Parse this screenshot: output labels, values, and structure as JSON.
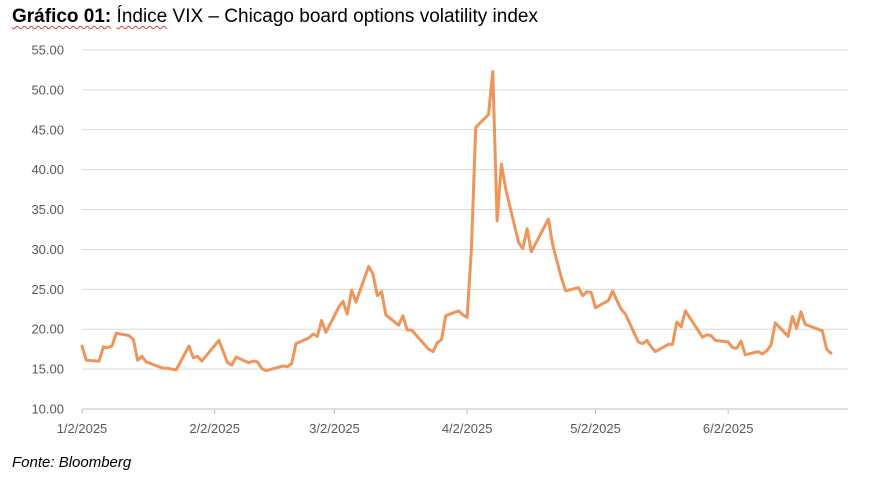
{
  "header": {
    "title_bold": "Gráfico 01:",
    "title_word": "Índice",
    "title_rest": "VIX – Chicago board options volatility index"
  },
  "source": "Fonte: Bloomberg",
  "colors": {
    "line": "#f0955a",
    "grid": "#d9d9d9",
    "axis": "#bfbfbf"
  },
  "chart_data": {
    "type": "line",
    "title": "Gráfico 01: Índice VIX – Chicago board options volatility index",
    "xlabel": "",
    "ylabel": "",
    "ylim": [
      10,
      55
    ],
    "xlim": [
      "2025-01-02",
      "2025-06-30"
    ],
    "grid": true,
    "legend": "none",
    "y_ticks": [
      "10.00",
      "15.00",
      "20.00",
      "25.00",
      "30.00",
      "35.00",
      "40.00",
      "45.00",
      "50.00",
      "55.00"
    ],
    "x_ticks": [
      {
        "label": "1/2/2025",
        "date": "2025-01-02"
      },
      {
        "label": "2/2/2025",
        "date": "2025-02-02"
      },
      {
        "label": "3/2/2025",
        "date": "2025-03-02"
      },
      {
        "label": "4/2/2025",
        "date": "2025-04-02"
      },
      {
        "label": "5/2/2025",
        "date": "2025-05-02"
      },
      {
        "label": "6/2/2025",
        "date": "2025-06-02"
      }
    ],
    "series": [
      {
        "name": "",
        "points": [
          [
            "2025-01-02",
            17.9
          ],
          [
            "2025-01-03",
            16.1
          ],
          [
            "2025-01-06",
            16.0
          ],
          [
            "2025-01-07",
            17.8
          ],
          [
            "2025-01-08",
            17.7
          ],
          [
            "2025-01-09",
            17.9
          ],
          [
            "2025-01-10",
            19.5
          ],
          [
            "2025-01-13",
            19.2
          ],
          [
            "2025-01-14",
            18.7
          ],
          [
            "2025-01-15",
            16.1
          ],
          [
            "2025-01-16",
            16.6
          ],
          [
            "2025-01-17",
            15.9
          ],
          [
            "2025-01-21",
            15.1
          ],
          [
            "2025-01-22",
            15.1
          ],
          [
            "2025-01-23",
            15.0
          ],
          [
            "2025-01-24",
            14.9
          ],
          [
            "2025-01-27",
            17.9
          ],
          [
            "2025-01-28",
            16.4
          ],
          [
            "2025-01-29",
            16.6
          ],
          [
            "2025-01-30",
            16.0
          ],
          [
            "2025-02-03",
            18.6
          ],
          [
            "2025-02-04",
            17.2
          ],
          [
            "2025-02-05",
            15.8
          ],
          [
            "2025-02-06",
            15.5
          ],
          [
            "2025-02-07",
            16.5
          ],
          [
            "2025-02-10",
            15.8
          ],
          [
            "2025-02-11",
            16.0
          ],
          [
            "2025-02-12",
            15.9
          ],
          [
            "2025-02-13",
            15.1
          ],
          [
            "2025-02-14",
            14.8
          ],
          [
            "2025-02-18",
            15.4
          ],
          [
            "2025-02-19",
            15.3
          ],
          [
            "2025-02-20",
            15.7
          ],
          [
            "2025-02-21",
            18.2
          ],
          [
            "2025-02-24",
            18.9
          ],
          [
            "2025-02-25",
            19.4
          ],
          [
            "2025-02-26",
            19.1
          ],
          [
            "2025-02-27",
            21.1
          ],
          [
            "2025-02-28",
            19.6
          ],
          [
            "2025-03-03",
            22.8
          ],
          [
            "2025-03-04",
            23.5
          ],
          [
            "2025-03-05",
            21.9
          ],
          [
            "2025-03-06",
            24.9
          ],
          [
            "2025-03-07",
            23.4
          ],
          [
            "2025-03-10",
            27.9
          ],
          [
            "2025-03-11",
            26.9
          ],
          [
            "2025-03-12",
            24.2
          ],
          [
            "2025-03-13",
            24.7
          ],
          [
            "2025-03-14",
            21.8
          ],
          [
            "2025-03-17",
            20.5
          ],
          [
            "2025-03-18",
            21.7
          ],
          [
            "2025-03-19",
            19.9
          ],
          [
            "2025-03-20",
            19.9
          ],
          [
            "2025-03-21",
            19.3
          ],
          [
            "2025-03-24",
            17.5
          ],
          [
            "2025-03-25",
            17.2
          ],
          [
            "2025-03-26",
            18.3
          ],
          [
            "2025-03-27",
            18.7
          ],
          [
            "2025-03-28",
            21.7
          ],
          [
            "2025-03-31",
            22.3
          ],
          [
            "2025-04-01",
            21.8
          ],
          [
            "2025-04-02",
            21.5
          ],
          [
            "2025-04-03",
            30.0
          ],
          [
            "2025-04-04",
            45.3
          ],
          [
            "2025-04-07",
            46.9
          ],
          [
            "2025-04-08",
            52.3
          ],
          [
            "2025-04-09",
            33.6
          ],
          [
            "2025-04-10",
            40.7
          ],
          [
            "2025-04-11",
            37.6
          ],
          [
            "2025-04-14",
            30.9
          ],
          [
            "2025-04-15",
            30.1
          ],
          [
            "2025-04-16",
            32.6
          ],
          [
            "2025-04-17",
            29.7
          ],
          [
            "2025-04-21",
            33.8
          ],
          [
            "2025-04-22",
            30.6
          ],
          [
            "2025-04-23",
            28.5
          ],
          [
            "2025-04-24",
            26.5
          ],
          [
            "2025-04-25",
            24.8
          ],
          [
            "2025-04-28",
            25.2
          ],
          [
            "2025-04-29",
            24.2
          ],
          [
            "2025-04-30",
            24.7
          ],
          [
            "2025-05-01",
            24.6
          ],
          [
            "2025-05-02",
            22.7
          ],
          [
            "2025-05-05",
            23.6
          ],
          [
            "2025-05-06",
            24.8
          ],
          [
            "2025-05-07",
            23.6
          ],
          [
            "2025-05-08",
            22.5
          ],
          [
            "2025-05-09",
            21.9
          ],
          [
            "2025-05-12",
            18.4
          ],
          [
            "2025-05-13",
            18.2
          ],
          [
            "2025-05-14",
            18.6
          ],
          [
            "2025-05-15",
            17.8
          ],
          [
            "2025-05-16",
            17.2
          ],
          [
            "2025-05-19",
            18.1
          ],
          [
            "2025-05-20",
            18.1
          ],
          [
            "2025-05-21",
            20.9
          ],
          [
            "2025-05-22",
            20.3
          ],
          [
            "2025-05-23",
            22.3
          ],
          [
            "2025-05-27",
            19.0
          ],
          [
            "2025-05-28",
            19.3
          ],
          [
            "2025-05-29",
            19.2
          ],
          [
            "2025-05-30",
            18.6
          ],
          [
            "2025-06-02",
            18.4
          ],
          [
            "2025-06-03",
            17.7
          ],
          [
            "2025-06-04",
            17.6
          ],
          [
            "2025-06-05",
            18.5
          ],
          [
            "2025-06-06",
            16.8
          ],
          [
            "2025-06-09",
            17.2
          ],
          [
            "2025-06-10",
            16.9
          ],
          [
            "2025-06-11",
            17.3
          ],
          [
            "2025-06-12",
            18.0
          ],
          [
            "2025-06-13",
            20.8
          ],
          [
            "2025-06-16",
            19.1
          ],
          [
            "2025-06-17",
            21.6
          ],
          [
            "2025-06-18",
            20.1
          ],
          [
            "2025-06-19",
            22.2
          ],
          [
            "2025-06-20",
            20.6
          ],
          [
            "2025-06-24",
            19.8
          ],
          [
            "2025-06-25",
            17.5
          ],
          [
            "2025-06-26",
            17.0
          ]
        ]
      }
    ]
  }
}
